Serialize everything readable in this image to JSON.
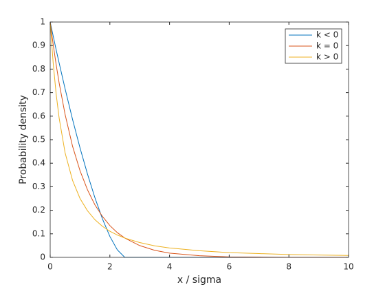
{
  "chart_data": {
    "type": "line",
    "xlabel": "x / sigma",
    "ylabel": "Probability density",
    "x": [
      0,
      0.1,
      0.2,
      0.3,
      0.5,
      0.75,
      1,
      1.25,
      1.5,
      1.75,
      2,
      2.25,
      2.5,
      3,
      3.5,
      4,
      5,
      6,
      7,
      8,
      9,
      10
    ],
    "series": [
      {
        "name": "k < 0",
        "color": "#0072bd",
        "values": [
          1,
          0.941,
          0.882,
          0.826,
          0.716,
          0.586,
          0.465,
          0.354,
          0.253,
          0.164,
          0.089,
          0.032,
          0,
          0,
          0,
          0,
          0,
          0,
          0,
          0,
          0,
          0
        ]
      },
      {
        "name": "k = 0",
        "color": "#d95319",
        "values": [
          1,
          0.905,
          0.819,
          0.741,
          0.607,
          0.472,
          0.368,
          0.287,
          0.223,
          0.174,
          0.135,
          0.105,
          0.082,
          0.05,
          0.03,
          0.018,
          0.007,
          0.002,
          0.001,
          0,
          0,
          0
        ]
      },
      {
        "name": "k > 0",
        "color": "#edb120",
        "values": [
          1,
          0.826,
          0.694,
          0.592,
          0.444,
          0.327,
          0.25,
          0.198,
          0.16,
          0.132,
          0.111,
          0.095,
          0.082,
          0.063,
          0.049,
          0.04,
          0.028,
          0.02,
          0.016,
          0.012,
          0.01,
          0.008
        ]
      }
    ],
    "xlim": [
      0,
      10
    ],
    "xticks": [
      0,
      2,
      4,
      6,
      8,
      10
    ],
    "ylim": [
      0,
      1
    ],
    "yticks": [
      0,
      0.1,
      0.2,
      0.3,
      0.4,
      0.5,
      0.6,
      0.7,
      0.8,
      0.9,
      1
    ],
    "legend": "top-right"
  }
}
